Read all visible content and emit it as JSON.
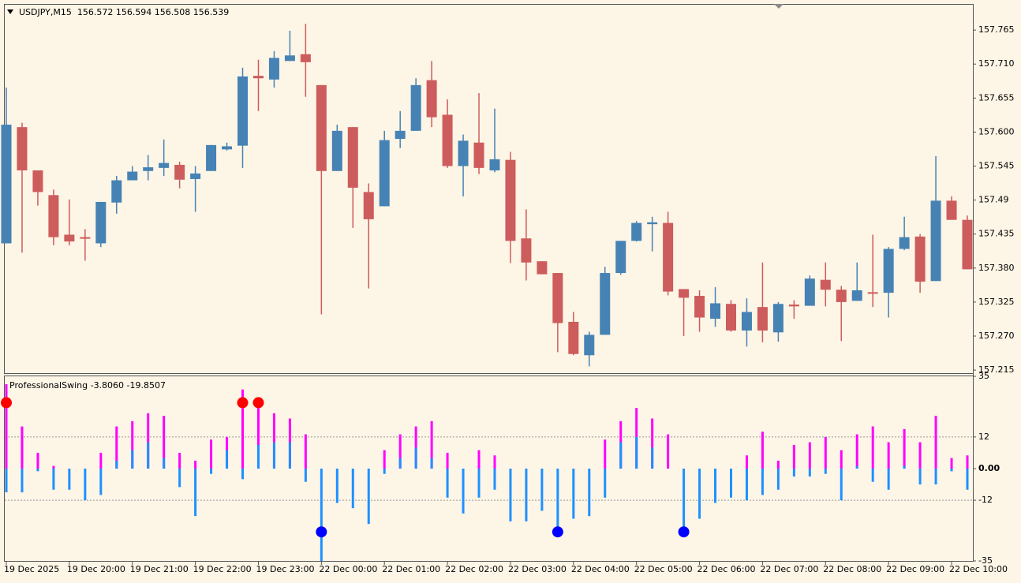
{
  "chart_data": [
    {
      "type": "candlestick",
      "title": "USDJPY,M15  156.572 156.594 156.508 156.539",
      "categories": [
        "19 Dec 2025",
        null,
        null,
        null,
        "19 Dec 20:00",
        null,
        null,
        null,
        "19 Dec 21:00",
        null,
        null,
        null,
        "19 Dec 22:00",
        null,
        null,
        null,
        "19 Dec 23:00",
        null,
        null,
        null,
        "22 Dec 00:00",
        null,
        null,
        null,
        "22 Dec 01:00",
        null,
        null,
        null,
        "22 Dec 02:00",
        null,
        null,
        null,
        "22 Dec 03:00",
        null,
        null,
        null,
        "22 Dec 04:00",
        null,
        null,
        null,
        "22 Dec 05:00",
        null,
        null,
        null,
        "22 Dec 06:00",
        null,
        null,
        null,
        "22 Dec 07:00",
        null,
        null,
        null,
        "22 Dec 08:00",
        null,
        null,
        null,
        "22 Dec 09:00",
        null,
        null,
        null,
        "22 Dec 10:00",
        null
      ],
      "open": [
        157.42,
        157.608,
        157.538,
        157.498,
        157.434,
        157.43,
        157.42,
        157.486,
        157.522,
        157.537,
        157.542,
        157.547,
        157.524,
        157.537,
        157.572,
        157.578,
        157.691,
        157.685,
        157.715,
        157.726,
        157.676,
        157.537,
        157.608,
        157.503,
        157.48,
        157.589,
        157.602,
        157.684,
        157.628,
        157.545,
        157.583,
        157.538,
        157.555,
        157.428,
        157.391,
        157.372,
        157.293,
        157.239,
        157.272,
        157.372,
        157.424,
        157.451,
        157.453,
        157.346,
        157.335,
        157.298,
        157.322,
        157.279,
        157.317,
        157.276,
        157.321,
        157.319,
        157.361,
        157.345,
        157.327,
        157.341,
        157.34,
        157.411,
        157.431,
        157.359,
        157.489,
        157.458
      ],
      "high": [
        157.672,
        157.615,
        157.538,
        157.507,
        157.491,
        157.443,
        157.487,
        157.529,
        157.545,
        157.563,
        157.588,
        157.552,
        157.545,
        157.579,
        157.583,
        157.704,
        157.717,
        157.731,
        157.764,
        157.775,
        157.676,
        157.612,
        157.608,
        157.517,
        157.602,
        157.634,
        157.687,
        157.715,
        157.653,
        157.596,
        157.663,
        157.638,
        157.568,
        157.475,
        157.391,
        157.372,
        157.309,
        157.277,
        157.382,
        157.424,
        157.456,
        157.463,
        157.471,
        157.346,
        157.344,
        157.349,
        157.328,
        157.331,
        157.389,
        157.325,
        157.328,
        157.368,
        157.389,
        157.351,
        157.389,
        157.434,
        157.414,
        157.463,
        157.435,
        157.561,
        157.496,
        157.465
      ],
      "low": [
        157.42,
        157.405,
        157.481,
        157.417,
        157.417,
        157.392,
        157.414,
        157.468,
        157.522,
        157.522,
        157.529,
        157.509,
        157.471,
        157.537,
        157.57,
        157.542,
        157.634,
        157.672,
        157.715,
        157.657,
        157.305,
        157.537,
        157.445,
        157.347,
        157.48,
        157.574,
        157.602,
        157.608,
        157.542,
        157.496,
        157.532,
        157.535,
        157.388,
        157.36,
        157.37,
        157.244,
        157.239,
        157.221,
        157.272,
        157.369,
        157.423,
        157.407,
        157.336,
        157.27,
        157.277,
        157.285,
        157.277,
        157.253,
        157.26,
        157.261,
        157.298,
        157.319,
        157.318,
        157.262,
        157.327,
        157.317,
        157.3,
        157.409,
        157.34,
        157.359,
        157.458,
        157.378
      ],
      "close": [
        157.612,
        157.538,
        157.503,
        157.43,
        157.423,
        157.428,
        157.487,
        157.522,
        157.536,
        157.543,
        157.55,
        157.523,
        157.533,
        157.579,
        157.577,
        157.69,
        157.687,
        157.72,
        157.724,
        157.713,
        157.537,
        157.602,
        157.51,
        157.459,
        157.587,
        157.602,
        157.676,
        157.624,
        157.545,
        157.586,
        157.542,
        157.556,
        157.424,
        157.389,
        157.37,
        157.291,
        157.241,
        157.272,
        157.372,
        157.424,
        157.453,
        157.454,
        157.342,
        157.332,
        157.3,
        157.323,
        157.279,
        157.309,
        157.279,
        157.322,
        157.318,
        157.363,
        157.345,
        157.325,
        157.344,
        157.339,
        157.411,
        157.43,
        157.358,
        157.489,
        157.458,
        157.378
      ],
      "up_color": "#4682b4",
      "down_color": "#cd5c5c",
      "ylim": [
        157.21,
        157.806
      ],
      "yticks": [
        157.765,
        {
          "value": 157.71,
          "label": "157.710"
        },
        157.655,
        {
          "value": 157.6,
          "label": "157.600"
        },
        157.545,
        157.49,
        157.435,
        {
          "value": 157.38,
          "label": "157.380"
        },
        157.325,
        {
          "value": 157.27,
          "label": "157.270"
        },
        157.215
      ]
    },
    {
      "type": "bar",
      "title": "ProfessionalSwing -3.8060 -19.8507",
      "series": [
        {
          "color": "#ff00ff",
          "values": [
            32,
            16,
            6,
            1,
            0,
            0,
            6,
            16,
            18,
            21,
            20,
            6,
            3,
            11,
            12,
            30,
            25,
            21,
            19,
            13,
            0,
            0,
            0,
            0,
            7,
            13,
            16,
            18,
            6,
            0,
            7,
            5,
            0,
            0,
            0,
            0,
            0,
            0,
            11,
            18,
            23,
            19,
            13,
            0,
            0,
            0,
            0,
            5,
            14,
            3,
            9,
            10,
            12,
            7,
            13,
            16,
            10,
            15,
            10,
            20,
            4,
            5
          ]
        },
        {
          "color": "#1e90ff",
          "values": [
            -9,
            -9,
            -1,
            -8,
            -8,
            -12,
            -10,
            3,
            7,
            10,
            4,
            -7,
            -18,
            -2,
            7,
            -4,
            9,
            10,
            10,
            -5,
            -35,
            -13,
            -15,
            -21,
            -2,
            4,
            8,
            4,
            -11,
            -17,
            -11,
            -8,
            -20,
            -20,
            -16,
            -24,
            -19,
            -18,
            -11,
            10,
            12,
            8,
            0,
            -24,
            -19,
            -13,
            -11,
            -12,
            -10,
            -8,
            -3,
            -3,
            -2,
            -12,
            1,
            -5,
            -8,
            1,
            -6,
            -6,
            -1,
            -8
          ]
        }
      ],
      "markers": [
        {
          "color": "#ff0000",
          "values": [
            25,
            null,
            null,
            null,
            null,
            null,
            null,
            null,
            null,
            null,
            null,
            null,
            null,
            null,
            null,
            25,
            25,
            null,
            null,
            null,
            null,
            null,
            null,
            null,
            null,
            null,
            null,
            null,
            null,
            null,
            null,
            null,
            null,
            null,
            null,
            null,
            null,
            null,
            null,
            null,
            null,
            null,
            null,
            null,
            null,
            null,
            null,
            null,
            null,
            null,
            null,
            null,
            null,
            null,
            null,
            null,
            null,
            null,
            null,
            null,
            null,
            null
          ]
        },
        {
          "color": "#0000ff",
          "values": [
            null,
            null,
            null,
            null,
            null,
            null,
            null,
            null,
            null,
            null,
            null,
            null,
            null,
            null,
            null,
            null,
            null,
            null,
            null,
            null,
            -24,
            null,
            null,
            null,
            null,
            null,
            null,
            null,
            null,
            null,
            null,
            null,
            null,
            null,
            null,
            -24,
            null,
            null,
            null,
            null,
            null,
            null,
            null,
            -24,
            null,
            null,
            null,
            null,
            null,
            null,
            null,
            null,
            null,
            null,
            null,
            null,
            null,
            null,
            null,
            null,
            null,
            null
          ]
        }
      ],
      "ylim": [
        -35,
        35
      ],
      "yticks": [
        35,
        12,
        {
          "value": 0,
          "label": "0.00"
        },
        -12,
        -35
      ],
      "levels": [
        12,
        -12
      ]
    }
  ]
}
